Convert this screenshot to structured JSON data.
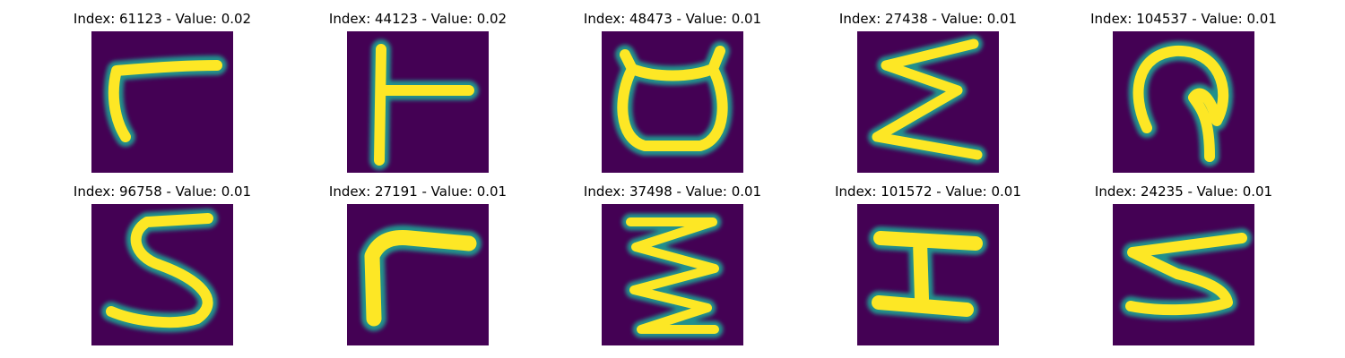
{
  "colors": {
    "background": "#440154",
    "mid": "#21918c",
    "foreground": "#fde725"
  },
  "panels": [
    {
      "title": "Index: 61123 - Value: 0.02",
      "glyph": "hook-r"
    },
    {
      "title": "Index: 44123 - Value: 0.02",
      "glyph": "t-sideways"
    },
    {
      "title": "Index: 48473 - Value: 0.01",
      "glyph": "cup-horns"
    },
    {
      "title": "Index: 27438 - Value: 0.01",
      "glyph": "zigzag-sigma"
    },
    {
      "title": "Index: 104537 - Value: 0.01",
      "glyph": "loop-hook"
    },
    {
      "title": "Index: 96758 - Value: 0.01",
      "glyph": "s-shape"
    },
    {
      "title": "Index: 27191 - Value: 0.01",
      "glyph": "thick-r"
    },
    {
      "title": "Index: 37498 - Value: 0.01",
      "glyph": "triple-zigzag"
    },
    {
      "title": "Index: 101572 - Value: 0.01",
      "glyph": "i-beam"
    },
    {
      "title": "Index: 24235 - Value: 0.01",
      "glyph": "reverse-three"
    }
  ]
}
